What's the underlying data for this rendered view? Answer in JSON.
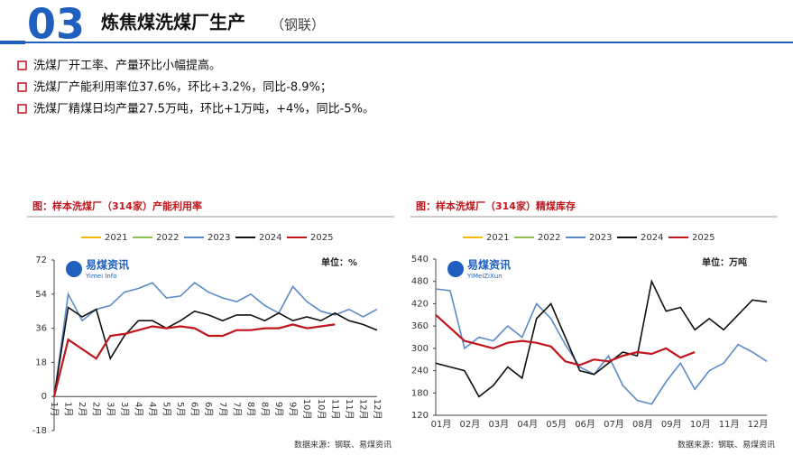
{
  "header": {
    "number": "03",
    "title": "炼焦煤洗煤厂生产",
    "subtitle": "（钢联）"
  },
  "bullets": [
    "洗煤厂开工率、产量环比小幅提高。",
    "洗煤厂产能利用率位37.6%，环比+3.2%，同比-8.9%；",
    "洗煤厂精煤日均产量27.5万吨，环比+1万吨，+4%，同比-5%。"
  ],
  "chart_data": [
    {
      "type": "line",
      "title": "图：样本洗煤厂（314家）产能利用率",
      "unit": "单位：%",
      "logo": "易煤资讯",
      "logo_sub": "Yimei Info",
      "source": "数据来源：钢联、易煤资讯",
      "categories": [
        "1月",
        "1月",
        "2月",
        "2月",
        "3月",
        "3月",
        "4月",
        "4月",
        "5月",
        "5月",
        "6月",
        "6月",
        "7月",
        "7月",
        "8月",
        "8月",
        "9月",
        "9月",
        "10月",
        "10月",
        "11月",
        "11月",
        "12月",
        "12月"
      ],
      "ylim": [
        -18,
        72
      ],
      "yticks": [
        -18,
        0,
        18,
        36,
        54,
        72
      ],
      "series": [
        {
          "name": "2021",
          "color": "#f5b800",
          "values": [
            null,
            null,
            null,
            null,
            null,
            null,
            null,
            null,
            null,
            null,
            null,
            null,
            null,
            null,
            null,
            null,
            null,
            null,
            null,
            null,
            null,
            null,
            null,
            null
          ]
        },
        {
          "name": "2022",
          "color": "#8dc04f",
          "values": [
            null,
            null,
            null,
            null,
            null,
            null,
            null,
            null,
            null,
            null,
            null,
            null,
            null,
            null,
            null,
            null,
            null,
            null,
            null,
            null,
            null,
            null,
            null,
            null
          ]
        },
        {
          "name": "2023",
          "color": "#5b8bc6",
          "values": [
            0,
            54,
            40,
            46,
            48,
            55,
            57,
            60,
            52,
            53,
            60,
            55,
            52,
            50,
            54,
            48,
            44,
            58,
            50,
            45,
            43,
            46,
            42,
            46
          ]
        },
        {
          "name": "2024",
          "color": "#111111",
          "values": [
            0,
            47,
            42,
            46,
            20,
            32,
            40,
            40,
            36,
            40,
            45,
            43,
            40,
            43,
            43,
            40,
            44,
            40,
            42,
            40,
            44,
            40,
            38,
            35
          ]
        },
        {
          "name": "2025",
          "color": "#c0161e",
          "values": [
            0,
            30,
            25,
            20,
            32,
            33,
            35,
            37,
            36,
            37,
            36,
            32,
            32,
            35,
            35,
            36,
            36,
            38,
            36,
            37,
            38,
            null,
            null,
            null
          ]
        }
      ]
    },
    {
      "type": "line",
      "title": "图：样本洗煤厂（314家）精煤库存",
      "unit": "单位：万吨",
      "logo": "易煤资讯",
      "logo_sub": "YiMeiZiXun",
      "source": "数据来源：钢联、易煤资讯",
      "categories": [
        "01月",
        null,
        "02月",
        null,
        "03月",
        null,
        "04月",
        null,
        "05月",
        null,
        "06月",
        null,
        "07月",
        null,
        "08月",
        null,
        "09月",
        null,
        "10月",
        null,
        "11月",
        null,
        "12月",
        null
      ],
      "ylim": [
        120,
        540
      ],
      "yticks": [
        120,
        180,
        240,
        300,
        360,
        420,
        480,
        540
      ],
      "series": [
        {
          "name": "2021",
          "color": "#f5b800",
          "values": [
            null,
            null,
            null,
            null,
            null,
            null,
            null,
            null,
            null,
            null,
            null,
            null,
            null,
            null,
            null,
            null,
            null,
            null,
            null,
            null,
            null,
            null,
            null,
            null
          ]
        },
        {
          "name": "2022",
          "color": "#8dc04f",
          "values": [
            null,
            null,
            null,
            null,
            null,
            null,
            null,
            null,
            null,
            null,
            null,
            null,
            null,
            null,
            null,
            null,
            null,
            null,
            null,
            null,
            null,
            null,
            null,
            null
          ]
        },
        {
          "name": "2023",
          "color": "#5b8bc6",
          "values": [
            460,
            455,
            300,
            330,
            320,
            360,
            330,
            420,
            380,
            310,
            250,
            230,
            280,
            200,
            160,
            150,
            210,
            260,
            190,
            240,
            260,
            310,
            290,
            265
          ]
        },
        {
          "name": "2024",
          "color": "#111111",
          "values": [
            260,
            250,
            240,
            170,
            200,
            250,
            220,
            380,
            420,
            330,
            240,
            230,
            260,
            290,
            280,
            480,
            400,
            410,
            350,
            380,
            350,
            390,
            430,
            425
          ]
        },
        {
          "name": "2025",
          "color": "#c0161e",
          "values": [
            390,
            355,
            320,
            310,
            300,
            315,
            320,
            315,
            305,
            265,
            255,
            270,
            265,
            280,
            290,
            285,
            300,
            275,
            290,
            null,
            null,
            null,
            null,
            null
          ]
        }
      ]
    }
  ]
}
